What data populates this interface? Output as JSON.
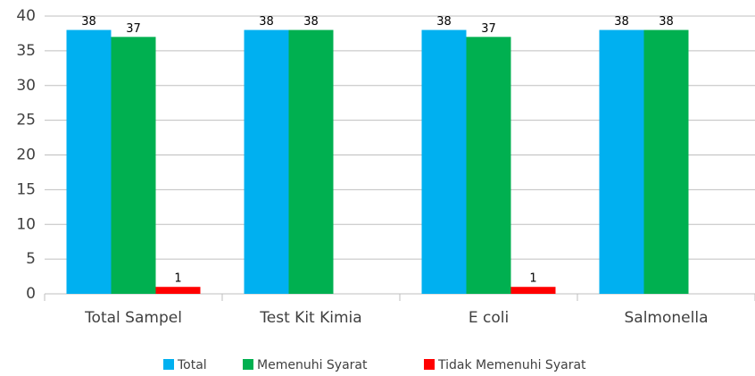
{
  "chart_data": {
    "type": "bar",
    "categories": [
      "Total Sampel",
      "Test Kit Kimia",
      "E coli",
      "Salmonella"
    ],
    "series": [
      {
        "name": "Total",
        "color": "#00b0f0",
        "values": [
          38,
          38,
          38,
          38
        ]
      },
      {
        "name": "Memenuhi Syarat",
        "color": "#00b050",
        "values": [
          37,
          38,
          37,
          38
        ]
      },
      {
        "name": "Tidak Memenuhi Syarat",
        "color": "#ff0000",
        "values": [
          1,
          null,
          1,
          null
        ]
      }
    ],
    "ylim": [
      0,
      40
    ],
    "yticks": [
      0,
      5,
      10,
      15,
      20,
      25,
      30,
      35,
      40
    ],
    "grid": true,
    "legend": "bottom"
  }
}
